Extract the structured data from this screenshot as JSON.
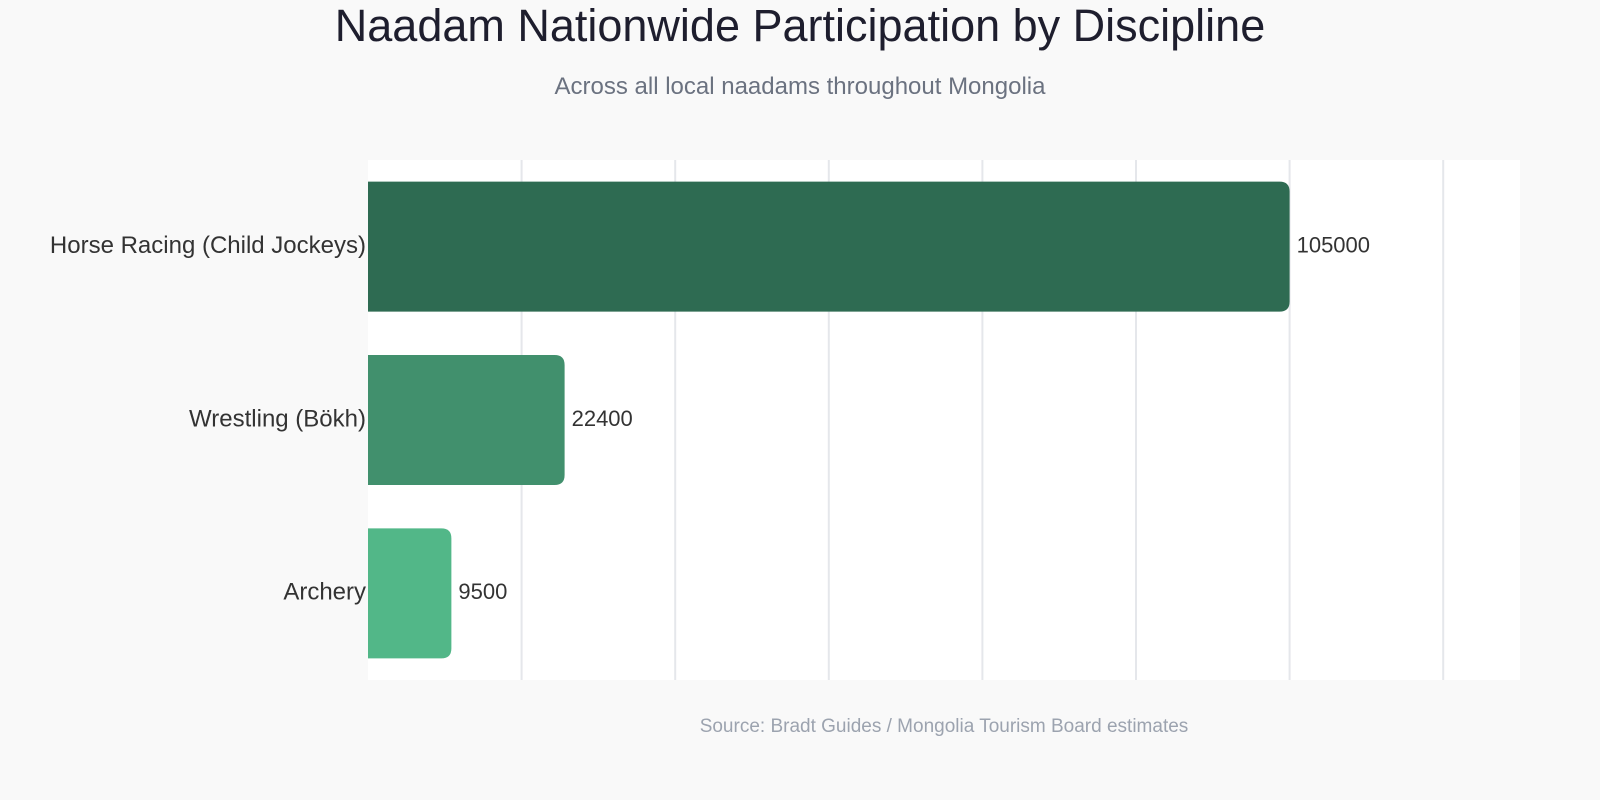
{
  "title": "Naadam Nationwide Participation by Discipline",
  "subtitle": "Across all local naadams throughout Mongolia",
  "source": "Source: Bradt Guides / Mongolia Tourism Board estimates",
  "chart_data": {
    "type": "bar",
    "orientation": "horizontal",
    "categories": [
      "Horse Racing (Child Jockeys)",
      "Wrestling (Bökh)",
      "Archery"
    ],
    "values": [
      105000,
      22400,
      9500
    ],
    "colors": [
      "#2e6b52",
      "#41906d",
      "#52b788"
    ],
    "xlim": [
      0,
      131250
    ],
    "grid": true,
    "legend": "none",
    "data_labels": true,
    "xlabel": "",
    "ylabel": ""
  }
}
